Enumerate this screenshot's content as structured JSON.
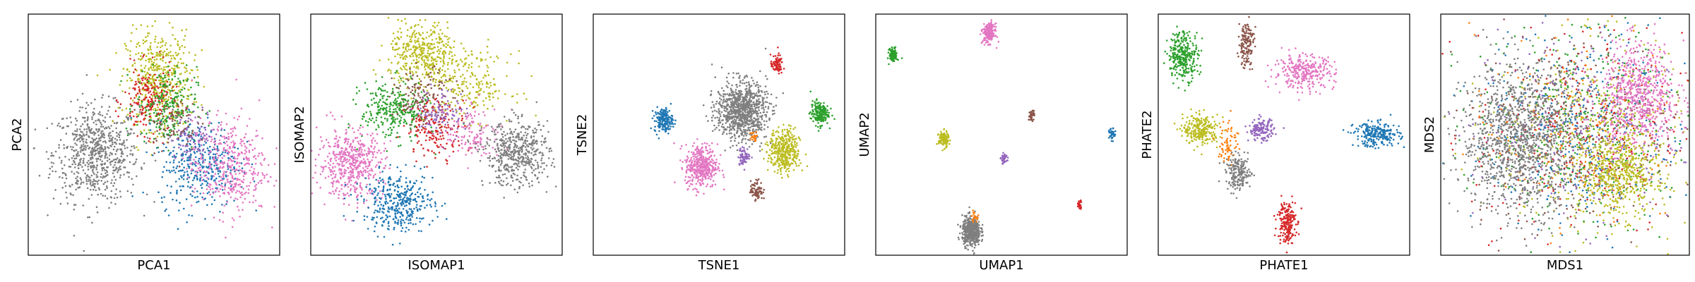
{
  "figure": {
    "palette": {
      "blue": "#1f77b4",
      "orange": "#ff7f0e",
      "green": "#2ca02c",
      "red": "#d62728",
      "purple": "#9467bd",
      "brown": "#8c564b",
      "pink": "#e377c2",
      "gray": "#7f7f7f",
      "olive": "#bcbd22"
    }
  },
  "chart_data": [
    {
      "type": "scatter",
      "title": "",
      "xlabel": "PCA1",
      "ylabel": "PCA2",
      "xlim": [
        0,
        1
      ],
      "ylim": [
        0,
        1
      ],
      "grid": false,
      "ticks": false,
      "clusters": [
        {
          "color": "gray",
          "cx": 0.27,
          "cy": 0.42,
          "sx": 0.085,
          "sy": 0.1,
          "n": 700
        },
        {
          "color": "olive",
          "cx": 0.52,
          "cy": 0.73,
          "sx": 0.065,
          "sy": 0.1,
          "n": 500
        },
        {
          "color": "red",
          "cx": 0.48,
          "cy": 0.64,
          "sx": 0.05,
          "sy": 0.07,
          "n": 200
        },
        {
          "color": "green",
          "cx": 0.55,
          "cy": 0.62,
          "sx": 0.06,
          "sy": 0.08,
          "n": 220
        },
        {
          "color": "blue",
          "cx": 0.68,
          "cy": 0.38,
          "sx": 0.08,
          "sy": 0.09,
          "n": 380
        },
        {
          "color": "pink",
          "cx": 0.8,
          "cy": 0.37,
          "sx": 0.075,
          "sy": 0.1,
          "n": 420
        },
        {
          "color": "purple",
          "cx": 0.66,
          "cy": 0.5,
          "sx": 0.05,
          "sy": 0.05,
          "n": 90
        },
        {
          "color": "brown",
          "cx": 0.57,
          "cy": 0.55,
          "sx": 0.05,
          "sy": 0.06,
          "n": 80
        }
      ]
    },
    {
      "type": "scatter",
      "title": "",
      "xlabel": "ISOMAP1",
      "ylabel": "ISOMAP2",
      "xlim": [
        0,
        1
      ],
      "ylim": [
        0,
        1
      ],
      "grid": false,
      "ticks": false,
      "clusters": [
        {
          "color": "olive",
          "cx": 0.45,
          "cy": 0.83,
          "sx": 0.07,
          "sy": 0.07,
          "n": 420
        },
        {
          "color": "olive",
          "cx": 0.64,
          "cy": 0.7,
          "sx": 0.08,
          "sy": 0.07,
          "n": 200
        },
        {
          "color": "green",
          "cx": 0.33,
          "cy": 0.6,
          "sx": 0.065,
          "sy": 0.06,
          "n": 300
        },
        {
          "color": "brown",
          "cx": 0.45,
          "cy": 0.65,
          "sx": 0.06,
          "sy": 0.06,
          "n": 150
        },
        {
          "color": "red",
          "cx": 0.5,
          "cy": 0.53,
          "sx": 0.06,
          "sy": 0.06,
          "n": 170
        },
        {
          "color": "purple",
          "cx": 0.52,
          "cy": 0.59,
          "sx": 0.05,
          "sy": 0.05,
          "n": 110
        },
        {
          "color": "pink",
          "cx": 0.16,
          "cy": 0.38,
          "sx": 0.065,
          "sy": 0.07,
          "n": 500
        },
        {
          "color": "pink",
          "cx": 0.65,
          "cy": 0.5,
          "sx": 0.06,
          "sy": 0.06,
          "n": 120
        },
        {
          "color": "gray",
          "cx": 0.82,
          "cy": 0.42,
          "sx": 0.065,
          "sy": 0.065,
          "n": 500
        },
        {
          "color": "blue",
          "cx": 0.35,
          "cy": 0.22,
          "sx": 0.07,
          "sy": 0.06,
          "n": 380
        }
      ]
    },
    {
      "type": "scatter",
      "title": "",
      "xlabel": "TSNE1",
      "ylabel": "TSNE2",
      "xlim": [
        0,
        1
      ],
      "ylim": [
        0,
        1
      ],
      "grid": false,
      "ticks": false,
      "clusters": [
        {
          "color": "gray",
          "cx": 0.59,
          "cy": 0.6,
          "sx": 0.05,
          "sy": 0.06,
          "n": 900
        },
        {
          "color": "olive",
          "cx": 0.76,
          "cy": 0.43,
          "sx": 0.03,
          "sy": 0.045,
          "n": 400
        },
        {
          "color": "pink",
          "cx": 0.43,
          "cy": 0.37,
          "sx": 0.032,
          "sy": 0.045,
          "n": 400
        },
        {
          "color": "blue",
          "cx": 0.28,
          "cy": 0.56,
          "sx": 0.018,
          "sy": 0.025,
          "n": 180
        },
        {
          "color": "green",
          "cx": 0.9,
          "cy": 0.59,
          "sx": 0.018,
          "sy": 0.025,
          "n": 180
        },
        {
          "color": "red",
          "cx": 0.73,
          "cy": 0.79,
          "sx": 0.012,
          "sy": 0.02,
          "n": 80
        },
        {
          "color": "brown",
          "cx": 0.65,
          "cy": 0.27,
          "sx": 0.012,
          "sy": 0.02,
          "n": 80
        },
        {
          "color": "purple",
          "cx": 0.6,
          "cy": 0.41,
          "sx": 0.012,
          "sy": 0.018,
          "n": 70
        },
        {
          "color": "orange",
          "cx": 0.64,
          "cy": 0.49,
          "sx": 0.008,
          "sy": 0.012,
          "n": 25
        }
      ]
    },
    {
      "type": "scatter",
      "title": "",
      "xlabel": "UMAP1",
      "ylabel": "UMAP2",
      "xlim": [
        0,
        1
      ],
      "ylim": [
        0,
        1
      ],
      "grid": false,
      "ticks": false,
      "clusters": [
        {
          "color": "gray",
          "cx": 0.38,
          "cy": 0.1,
          "sx": 0.018,
          "sy": 0.03,
          "n": 500
        },
        {
          "color": "orange",
          "cx": 0.39,
          "cy": 0.16,
          "sx": 0.006,
          "sy": 0.01,
          "n": 20
        },
        {
          "color": "pink",
          "cx": 0.45,
          "cy": 0.92,
          "sx": 0.012,
          "sy": 0.02,
          "n": 200
        },
        {
          "color": "green",
          "cx": 0.07,
          "cy": 0.83,
          "sx": 0.008,
          "sy": 0.014,
          "n": 100
        },
        {
          "color": "olive",
          "cx": 0.27,
          "cy": 0.48,
          "sx": 0.01,
          "sy": 0.016,
          "n": 150
        },
        {
          "color": "brown",
          "cx": 0.62,
          "cy": 0.58,
          "sx": 0.006,
          "sy": 0.01,
          "n": 40
        },
        {
          "color": "purple",
          "cx": 0.51,
          "cy": 0.4,
          "sx": 0.006,
          "sy": 0.01,
          "n": 40
        },
        {
          "color": "blue",
          "cx": 0.94,
          "cy": 0.5,
          "sx": 0.006,
          "sy": 0.012,
          "n": 40
        },
        {
          "color": "red",
          "cx": 0.81,
          "cy": 0.21,
          "sx": 0.005,
          "sy": 0.009,
          "n": 30
        }
      ]
    },
    {
      "type": "scatter",
      "title": "",
      "xlabel": "PHATE1",
      "ylabel": "PHATE2",
      "xlim": [
        0,
        1
      ],
      "ylim": [
        0,
        1
      ],
      "grid": false,
      "ticks": false,
      "clusters": [
        {
          "color": "green",
          "cx": 0.1,
          "cy": 0.83,
          "sx": 0.03,
          "sy": 0.05,
          "n": 300
        },
        {
          "color": "brown",
          "cx": 0.35,
          "cy": 0.88,
          "sx": 0.015,
          "sy": 0.05,
          "n": 150
        },
        {
          "color": "pink",
          "cx": 0.58,
          "cy": 0.76,
          "sx": 0.06,
          "sy": 0.035,
          "n": 300
        },
        {
          "color": "olive",
          "cx": 0.17,
          "cy": 0.52,
          "sx": 0.035,
          "sy": 0.03,
          "n": 250
        },
        {
          "color": "purple",
          "cx": 0.41,
          "cy": 0.52,
          "sx": 0.025,
          "sy": 0.022,
          "n": 150
        },
        {
          "color": "blue",
          "cx": 0.87,
          "cy": 0.5,
          "sx": 0.045,
          "sy": 0.025,
          "n": 250
        },
        {
          "color": "orange",
          "cx": 0.28,
          "cy": 0.47,
          "sx": 0.02,
          "sy": 0.05,
          "n": 70
        },
        {
          "color": "gray",
          "cx": 0.32,
          "cy": 0.34,
          "sx": 0.025,
          "sy": 0.035,
          "n": 200
        },
        {
          "color": "red",
          "cx": 0.51,
          "cy": 0.14,
          "sx": 0.018,
          "sy": 0.045,
          "n": 200
        }
      ]
    },
    {
      "type": "scatter",
      "title": "",
      "xlabel": "MDS1",
      "ylabel": "MDS2",
      "xlim": [
        0,
        1
      ],
      "ylim": [
        0,
        1
      ],
      "grid": false,
      "ticks": false,
      "clusters": [
        {
          "color": "olive",
          "cx": 0.62,
          "cy": 0.5,
          "sx": 0.2,
          "sy": 0.2,
          "n": 500
        },
        {
          "color": "green",
          "cx": 0.55,
          "cy": 0.55,
          "sx": 0.21,
          "sy": 0.21,
          "n": 350
        },
        {
          "color": "blue",
          "cx": 0.58,
          "cy": 0.52,
          "sx": 0.21,
          "sy": 0.21,
          "n": 350
        },
        {
          "color": "red",
          "cx": 0.55,
          "cy": 0.5,
          "sx": 0.21,
          "sy": 0.21,
          "n": 300
        },
        {
          "color": "brown",
          "cx": 0.55,
          "cy": 0.52,
          "sx": 0.21,
          "sy": 0.21,
          "n": 250
        },
        {
          "color": "purple",
          "cx": 0.55,
          "cy": 0.52,
          "sx": 0.21,
          "sy": 0.21,
          "n": 250
        },
        {
          "color": "orange",
          "cx": 0.55,
          "cy": 0.52,
          "sx": 0.21,
          "sy": 0.21,
          "n": 150
        },
        {
          "color": "pink",
          "cx": 0.8,
          "cy": 0.66,
          "sx": 0.075,
          "sy": 0.11,
          "n": 650
        },
        {
          "color": "olive",
          "cx": 0.72,
          "cy": 0.34,
          "sx": 0.075,
          "sy": 0.09,
          "n": 500
        },
        {
          "color": "gray",
          "cx": 0.32,
          "cy": 0.48,
          "sx": 0.12,
          "sy": 0.15,
          "n": 1200
        }
      ]
    }
  ]
}
